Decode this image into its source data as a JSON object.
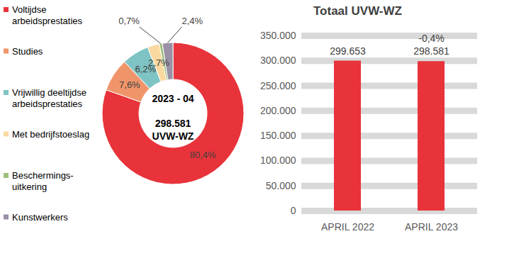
{
  "chart_data": [
    {
      "type": "pie",
      "categories": [
        "Voltijdse arbeidsprestaties",
        "Studies",
        "Vrijwillig deeltijdse arbeidsprestaties",
        "Met bedrijfstoeslag",
        "Beschermings-uitkering",
        "Kunstwerkers"
      ],
      "values": [
        80.4,
        7.6,
        6.2,
        2.7,
        0.7,
        2.4
      ],
      "value_labels": [
        "80,4%",
        "7,6%",
        "6,2%",
        "2,7%",
        "0,7%",
        "2,4%"
      ],
      "colors": [
        "#E8333A",
        "#F0956A",
        "#7FC4C4",
        "#FAD9A0",
        "#9DBF7A",
        "#9A90A6"
      ],
      "data_labels": true,
      "legend": "left",
      "annotations": [
        "2023 - 04",
        "298.581",
        "UVW-WZ"
      ]
    },
    {
      "type": "bar",
      "title": "Totaal UVW-WZ",
      "categories": [
        "APRIL 2022",
        "APRIL 2023"
      ],
      "values": [
        299653,
        298581
      ],
      "value_labels": [
        "299.653",
        "298.581"
      ],
      "color": "#E8333A",
      "ylim": [
        0,
        350000
      ],
      "yticks": [
        0,
        {
          "value": 50000,
          "label": "50.000"
        },
        {
          "value": 100000,
          "label": "100.000"
        },
        {
          "value": 150000,
          "label": "150.000"
        },
        {
          "value": 200000,
          "label": "200.000"
        },
        {
          "value": 250000,
          "label": "250.000"
        },
        {
          "value": 300000,
          "label": "300.000"
        },
        {
          "value": 350000,
          "label": "350.000"
        }
      ],
      "grid": true,
      "data_labels": true,
      "annotations": [
        {
          "category": "APRIL 2023",
          "text": "-0,4%"
        }
      ]
    }
  ]
}
